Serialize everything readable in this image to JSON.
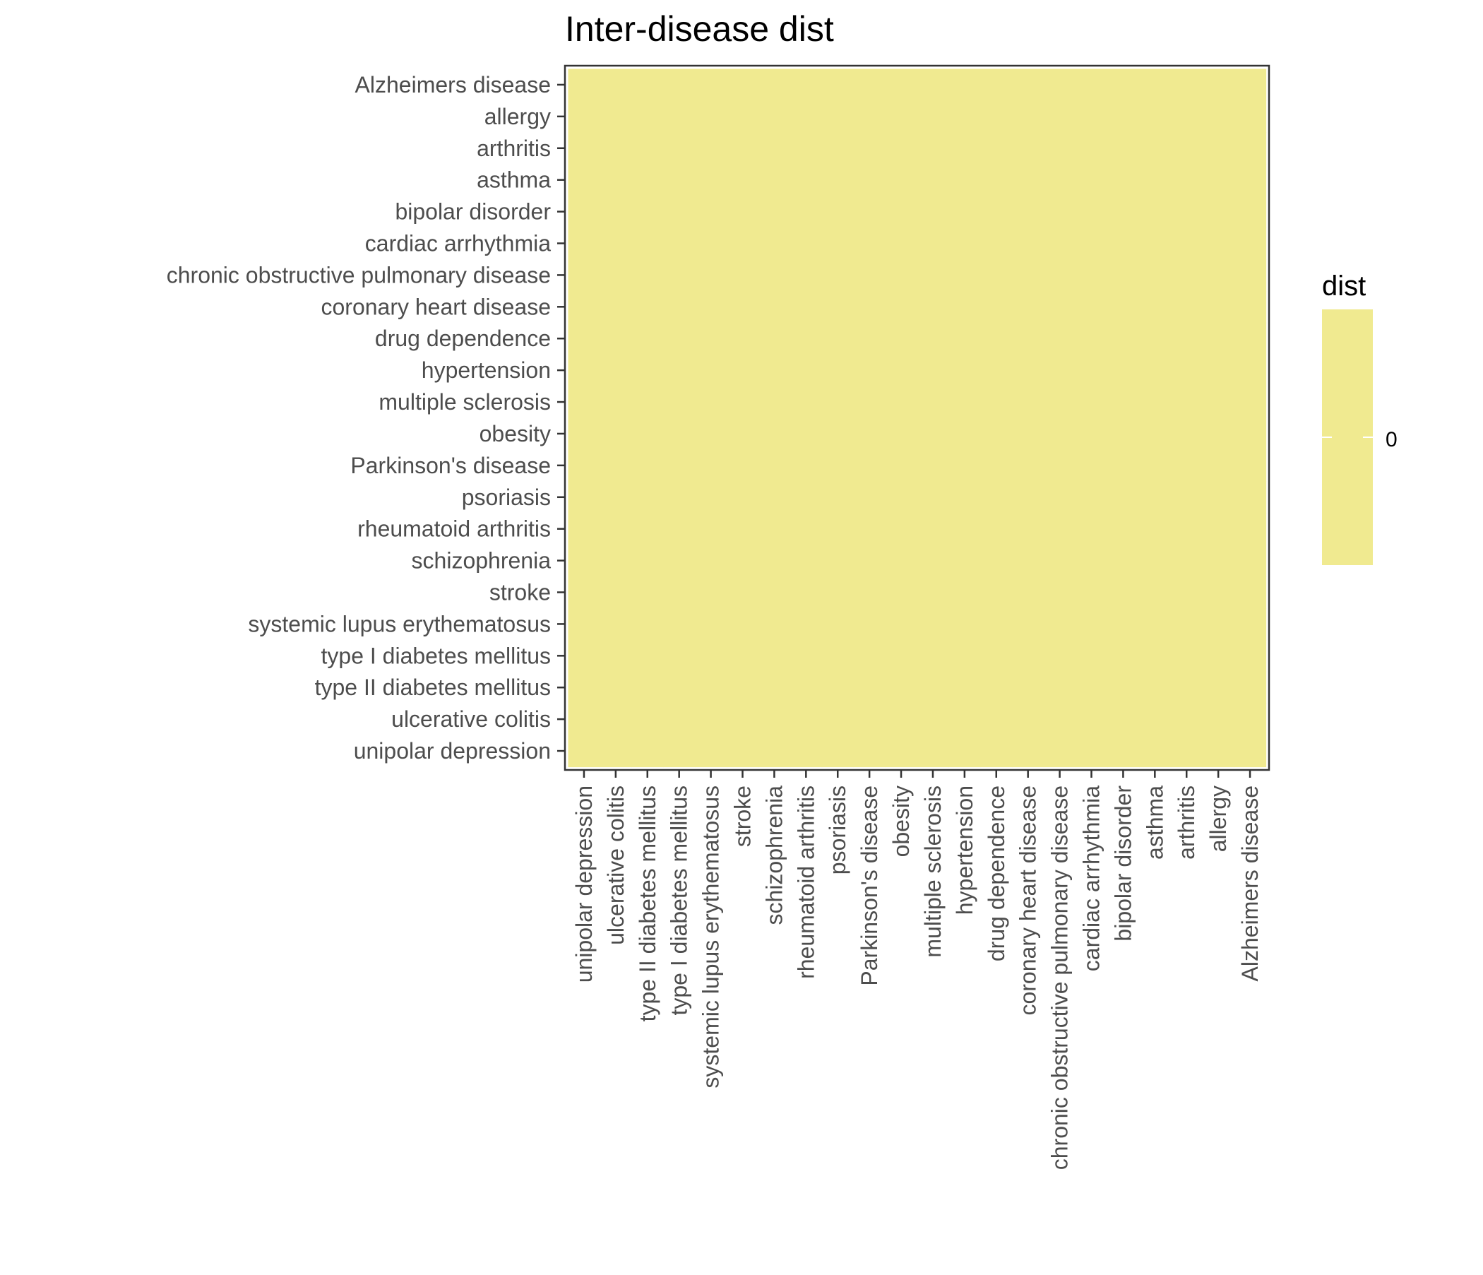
{
  "chart_data": {
    "type": "heatmap",
    "title": "Inter-disease dist",
    "xlabel": "",
    "ylabel": "",
    "y_categories": [
      "Alzheimers disease",
      "allergy",
      "arthritis",
      "asthma",
      "bipolar disorder",
      "cardiac arrhythmia",
      "chronic obstructive pulmonary disease",
      "coronary heart disease",
      "drug dependence",
      "hypertension",
      "multiple sclerosis",
      "obesity",
      "Parkinson's disease",
      "psoriasis",
      "rheumatoid arthritis",
      "schizophrenia",
      "stroke",
      "systemic lupus erythematosus",
      "type I diabetes mellitus",
      "type II diabetes mellitus",
      "ulcerative colitis",
      "unipolar depression"
    ],
    "x_categories": [
      "unipolar depression",
      "ulcerative colitis",
      "type II diabetes mellitus",
      "type I diabetes mellitus",
      "systemic lupus erythematosus",
      "stroke",
      "schizophrenia",
      "rheumatoid arthritis",
      "psoriasis",
      "Parkinson's disease",
      "obesity",
      "multiple sclerosis",
      "hypertension",
      "drug dependence",
      "coronary heart disease",
      "chronic obstructive pulmonary disease",
      "cardiac arrhythmia",
      "bipolar disorder",
      "asthma",
      "arthritis",
      "allergy",
      "Alzheimers disease"
    ],
    "value": 0,
    "legend": {
      "title": "dist",
      "tick_label": "0",
      "position": "right"
    },
    "colors": {
      "fill": "#f0ea90",
      "panel_border": "#333333",
      "tick": "#333333",
      "tick_label": "#4d4d4d",
      "title": "#000000"
    },
    "grid": false
  }
}
